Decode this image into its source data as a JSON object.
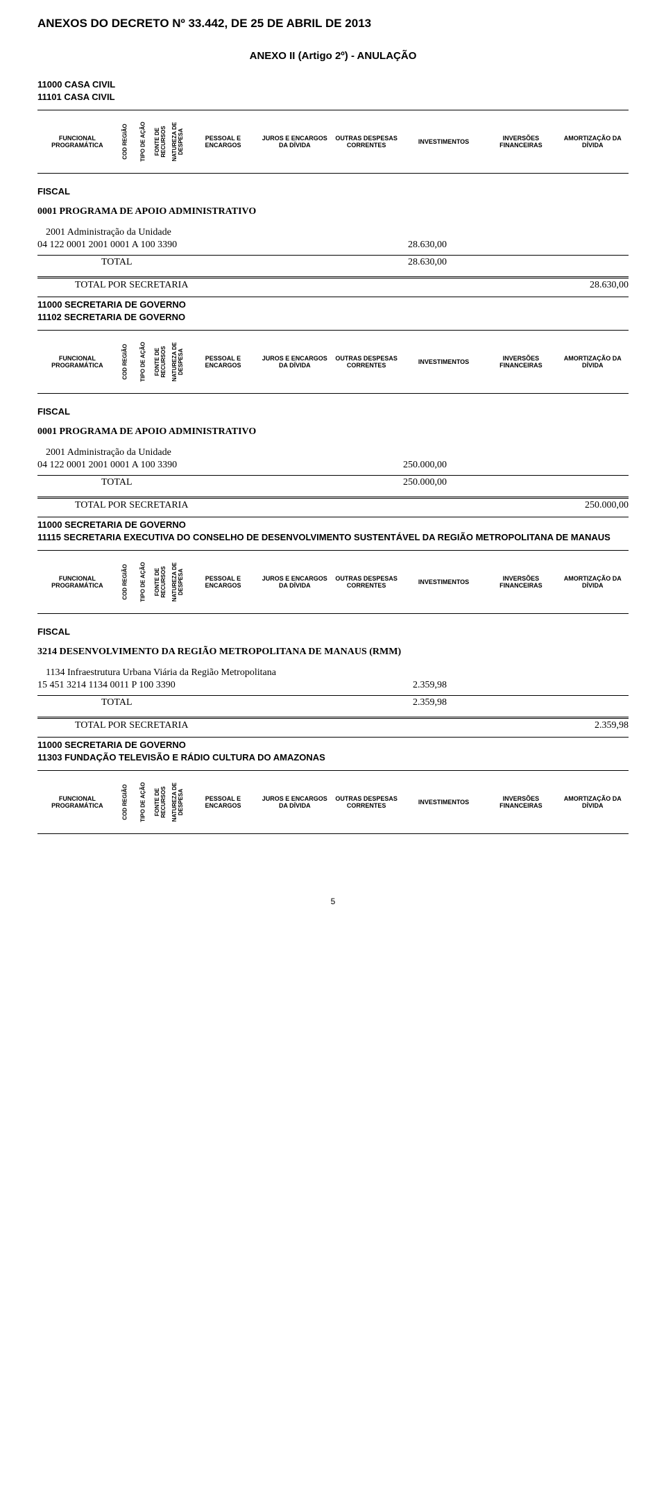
{
  "colors": {
    "text": "#000000",
    "background": "#ffffff",
    "rule": "#000000"
  },
  "doc": {
    "title": "ANEXOS DO DECRETO Nº 33.442, DE 25 DE ABRIL DE 2013",
    "anexo_title": "ANEXO II (Artigo 2º) - ANULAÇÃO",
    "page_number": "5"
  },
  "header_labels": {
    "funcional": "FUNCIONAL PROGRAMÁTICA",
    "cod_regiao": "COD REGIÃO",
    "tipo_de_acao": "TIPO DE AÇÃO",
    "fonte_de_recursos": "FONTE DE RECURSOS",
    "natureza_de_despesa": "NATUREZA DE DESPESA",
    "pessoal_e_encargos": "PESSOAL E ENCARGOS",
    "juros_e_encargos": "JUROS E ENCARGOS DA DÍVIDA",
    "outras_despesas": "OUTRAS DESPESAS CORRENTES",
    "investimentos": "INVESTIMENTOS",
    "inversoes": "INVERSÕES FINANCEIRAS",
    "amortizacao": "AMORTIZAÇÃO DA DÍVIDA"
  },
  "common": {
    "fiscal": "FISCAL",
    "total": "TOTAL",
    "total_por_secretaria": "TOTAL POR SECRETARIA"
  },
  "sections": [
    {
      "org_line1": "11000 CASA CIVIL",
      "org_line2": "11101 CASA CIVIL",
      "program_title": "0001 PROGRAMA DE APOIO ADMINISTRATIVO",
      "activity_desc": "2001 Administração da Unidade",
      "code_line": "04 122 0001 2001   0001 A  100  3390",
      "value": "28.630,00",
      "total_value": "28.630,00",
      "sec_total_value": "28.630,00"
    },
    {
      "org_line1": "11000 SECRETARIA DE GOVERNO",
      "org_line2": "11102 SECRETARIA DE GOVERNO",
      "program_title": "0001 PROGRAMA DE APOIO ADMINISTRATIVO",
      "activity_desc": "2001 Administração da Unidade",
      "code_line": "04 122 0001 2001   0001 A  100  3390",
      "value": "250.000,00",
      "total_value": "250.000,00",
      "sec_total_value": "250.000,00"
    },
    {
      "org_line1": "11000 SECRETARIA DE GOVERNO",
      "org_line2": "11115 SECRETARIA EXECUTIVA DO CONSELHO DE DESENVOLVIMENTO SUSTENTÁVEL DA REGIÃO METROPOLITANA DE MANAUS",
      "program_title": "3214 DESENVOLVIMENTO DA REGIÃO METROPOLITANA DE MANAUS (RMM)",
      "activity_desc": "1134 Infraestrutura Urbana Viária da Região Metropolitana",
      "code_line": "15 451 3214 1134   0011 P  100  3390",
      "value": "2.359,98",
      "total_value": "2.359,98",
      "sec_total_value": "2.359,98"
    },
    {
      "org_line1": "11000 SECRETARIA DE GOVERNO",
      "org_line2": "11303 FUNDAÇÃO TELEVISÃO E RÁDIO CULTURA DO AMAZONAS"
    }
  ]
}
